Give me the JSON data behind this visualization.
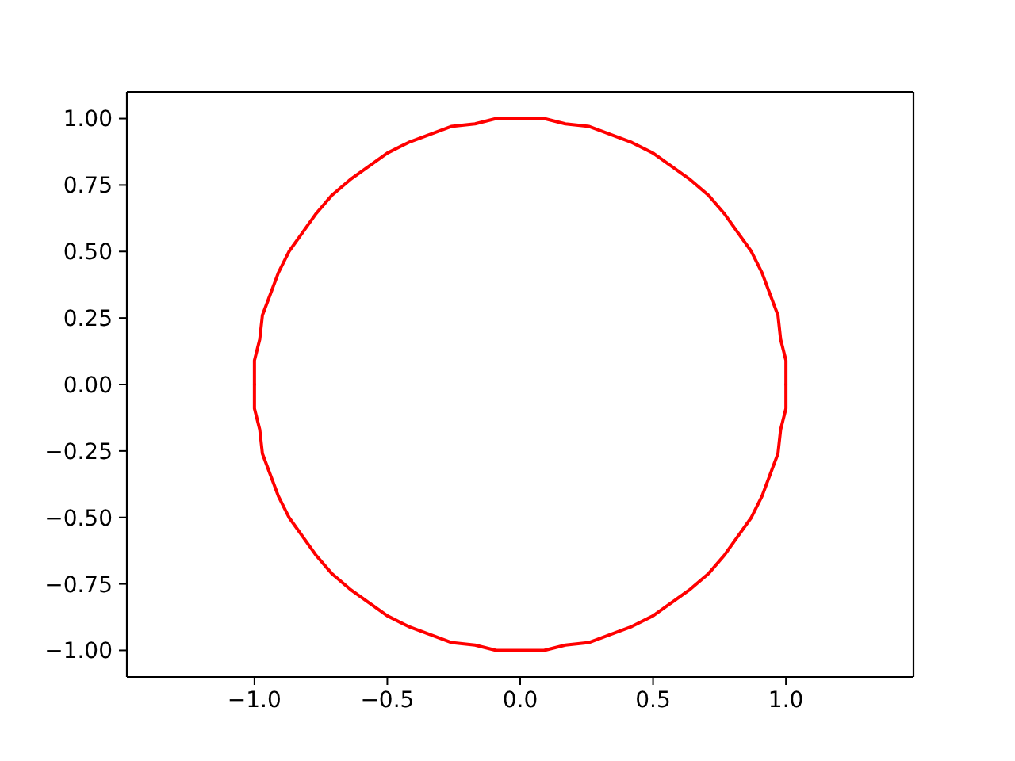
{
  "chart_data": {
    "type": "line",
    "series": [
      {
        "color": "#ff0000",
        "x": [
          -1.0,
          -1.0,
          -0.98,
          -0.97,
          -0.94,
          -0.91,
          -0.87,
          -0.82,
          -0.77,
          -0.71,
          -0.64,
          -0.57,
          -0.5,
          -0.42,
          -0.34,
          -0.26,
          -0.17,
          -0.09,
          0.0,
          0.09,
          0.17,
          0.26,
          0.34,
          0.42,
          0.5,
          0.57,
          0.64,
          0.71,
          0.77,
          0.82,
          0.87,
          0.91,
          0.94,
          0.97,
          0.98,
          1.0,
          1.0
        ],
        "values": [
          0.0,
          0.09,
          0.17,
          0.26,
          0.34,
          0.42,
          0.5,
          0.57,
          0.64,
          0.71,
          0.77,
          0.82,
          0.87,
          0.91,
          0.94,
          0.97,
          0.98,
          1.0,
          1.0,
          1.0,
          0.98,
          0.97,
          0.94,
          0.91,
          0.87,
          0.82,
          0.77,
          0.71,
          0.64,
          0.57,
          0.5,
          0.42,
          0.34,
          0.26,
          0.17,
          0.09,
          0.0
        ]
      },
      {
        "color": "#ff0000",
        "x": [
          -1.0,
          -1.0,
          -0.98,
          -0.97,
          -0.94,
          -0.91,
          -0.87,
          -0.82,
          -0.77,
          -0.71,
          -0.64,
          -0.57,
          -0.5,
          -0.42,
          -0.34,
          -0.26,
          -0.17,
          -0.09,
          0.0,
          0.09,
          0.17,
          0.26,
          0.34,
          0.42,
          0.5,
          0.57,
          0.64,
          0.71,
          0.77,
          0.82,
          0.87,
          0.91,
          0.94,
          0.97,
          0.98,
          1.0,
          1.0
        ],
        "values": [
          0.0,
          -0.09,
          -0.17,
          -0.26,
          -0.34,
          -0.42,
          -0.5,
          -0.57,
          -0.64,
          -0.71,
          -0.77,
          -0.82,
          -0.87,
          -0.91,
          -0.94,
          -0.97,
          -0.98,
          -1.0,
          -1.0,
          -1.0,
          -0.98,
          -0.97,
          -0.94,
          -0.91,
          -0.87,
          -0.82,
          -0.77,
          -0.71,
          -0.64,
          -0.57,
          -0.5,
          -0.42,
          -0.34,
          -0.26,
          -0.17,
          -0.09,
          0.0
        ]
      }
    ],
    "xlim": [
      -1.48,
      1.48
    ],
    "ylim": [
      -1.1,
      1.1
    ],
    "xticks": [
      {
        "value": -1,
        "label": "−1.0"
      },
      {
        "value": -0.5,
        "label": "−0.5"
      },
      {
        "value": 0,
        "label": "0.0"
      },
      {
        "value": 0.5,
        "label": "0.5"
      },
      {
        "value": 1,
        "label": "1.0"
      }
    ],
    "yticks": [
      {
        "value": -1,
        "label": "−1.00"
      },
      {
        "value": -0.75,
        "label": "−0.75"
      },
      {
        "value": -0.5,
        "label": "−0.50"
      },
      {
        "value": -0.25,
        "label": "−0.25"
      },
      {
        "value": 0,
        "label": "0.00"
      },
      {
        "value": 0.25,
        "label": "0.25"
      },
      {
        "value": 0.5,
        "label": "0.50"
      },
      {
        "value": 0.75,
        "label": "0.75"
      },
      {
        "value": 1,
        "label": "1.00"
      }
    ]
  }
}
